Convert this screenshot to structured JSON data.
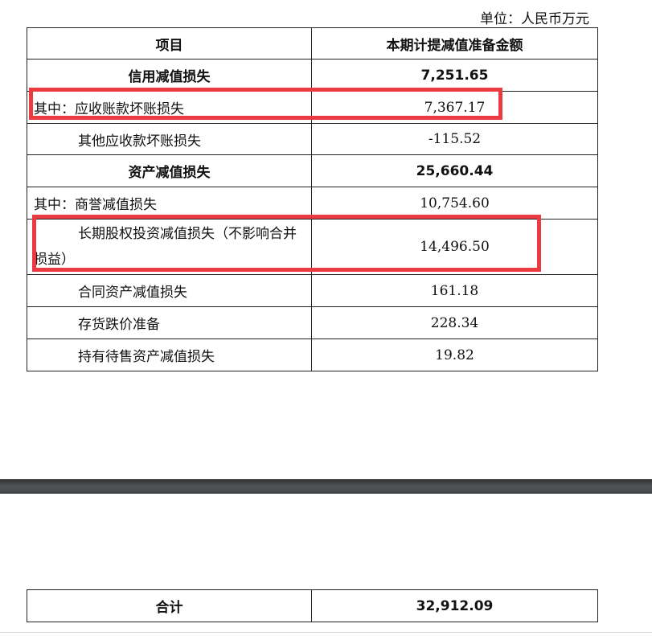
{
  "unit": "单位：人民币万元",
  "header": {
    "item": "项目",
    "amount": "本期计提减值准备金额"
  },
  "rows": [
    {
      "label": "信用减值损失",
      "value": "7,251.65"
    },
    {
      "label": "其中：应收账款坏账损失",
      "value": "7,367.17"
    },
    {
      "label": "其他应收款坏账损失",
      "value": "-115.52"
    },
    {
      "label": "资产减值损失",
      "value": "25,660.44"
    },
    {
      "label": "其中：商誉减值损失",
      "value": "10,754.60"
    },
    {
      "label": "长期股权投资减值损失（不影响合并",
      "label2": "损益）",
      "value": "14,496.50"
    },
    {
      "label": "合同资产减值损失",
      "value": "161.18"
    },
    {
      "label": "存货跌价准备",
      "value": "228.34"
    },
    {
      "label": "持有待售资产减值损失",
      "value": "19.82"
    }
  ],
  "total": {
    "label": "合计",
    "value": "32,912.09"
  },
  "highlight_color": "#ec3b40"
}
